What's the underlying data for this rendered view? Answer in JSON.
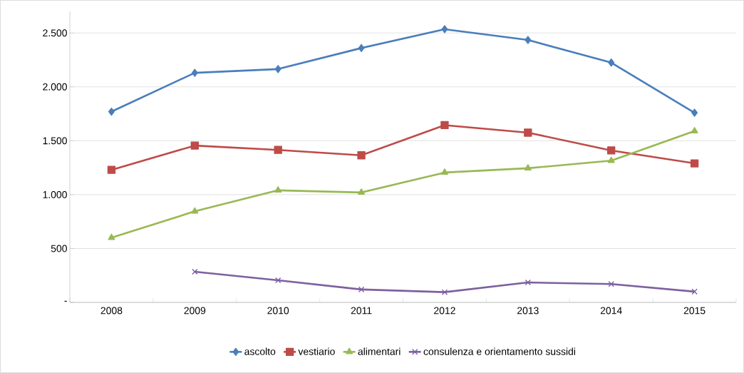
{
  "chart_data": {
    "type": "line",
    "categories": [
      "2008",
      "2009",
      "2010",
      "2011",
      "2012",
      "2013",
      "2014",
      "2015"
    ],
    "series": [
      {
        "name": "ascolto",
        "color": "#4a7ebb",
        "marker": "diamond",
        "values": [
          1770,
          2130,
          2165,
          2360,
          2535,
          2435,
          2225,
          1760
        ]
      },
      {
        "name": "vestiario",
        "color": "#be4b48",
        "marker": "square",
        "values": [
          1230,
          1455,
          1415,
          1365,
          1645,
          1575,
          1410,
          1290
        ]
      },
      {
        "name": "alimentari",
        "color": "#98b954",
        "marker": "triangle",
        "values": [
          600,
          845,
          1040,
          1020,
          1205,
          1245,
          1315,
          1590
        ]
      },
      {
        "name": "consulenza e orientamento sussidi",
        "color": "#7d60a0",
        "marker": "cross",
        "values": [
          null,
          285,
          205,
          120,
          95,
          185,
          170,
          100
        ]
      }
    ],
    "ylim": [
      0,
      2700
    ],
    "yticks": [
      {
        "value": 0,
        "label": "-"
      },
      {
        "value": 500,
        "label": "500"
      },
      {
        "value": 1000,
        "label": "1.000"
      },
      {
        "value": 1500,
        "label": "1.500"
      },
      {
        "value": 2000,
        "label": "2.000"
      },
      {
        "value": 2500,
        "label": "2.500"
      }
    ],
    "grid": "y",
    "legend": "bottom",
    "line_style": "solid"
  }
}
